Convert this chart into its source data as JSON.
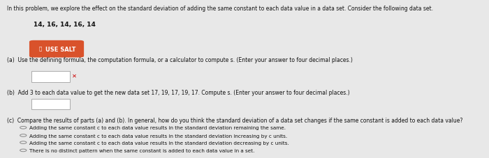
{
  "bg_color": "#e8e8e8",
  "title_text": "In this problem, we explore the effect on the standard deviation of adding the same constant to each data value in a data set. Consider the following data set.",
  "dataset_text": "14, 16, 14, 16, 14",
  "button_text": "USE SALT",
  "button_color": "#d9522b",
  "button_text_color": "#ffffff",
  "part_a_label": "(a)",
  "part_a_text": "Use the defining formula, the computation formula, or a calculator to compute s. (Enter your answer to four decimal places.)",
  "part_b_label": "(b)",
  "part_b_text": "Add 3 to each data value to get the new data set 17, 19, 17, 19, 17. Compute s. (Enter your answer to four decimal places.)",
  "part_c_label": "(c)",
  "part_c_text": "Compare the results of parts (a) and (b). In general, how do you think the standard deviation of a data set changes if the same constant is added to each data value?",
  "option1": "Adding the same constant c to each data value results in the standard deviation remaining the same.",
  "option2": "Adding the same constant c to each data value results in the standard deviation increasing by c units.",
  "option3": "Adding the same constant c to each data value results in the standard deviation decreasing by c units.",
  "option4": "There is no distinct pattern when the same constant is added to each data value in a set."
}
